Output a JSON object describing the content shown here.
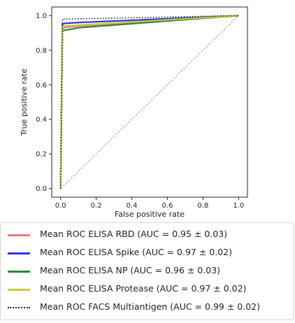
{
  "chart_data": {
    "type": "line",
    "xlabel": "False positive rate",
    "ylabel": "True positive rate",
    "xlim": [
      -0.05,
      1.05
    ],
    "ylim": [
      -0.05,
      1.05
    ],
    "xticks": [
      "0.0",
      "0.2",
      "0.4",
      "0.6",
      "0.8",
      "1.0"
    ],
    "yticks": [
      "0.0",
      "0.2",
      "0.4",
      "0.6",
      "0.8",
      "1.0"
    ],
    "legend_position": "below",
    "diagonal_reference": {
      "x": [
        0,
        1
      ],
      "y": [
        0,
        1
      ],
      "color": "#888888",
      "style": "dashed"
    },
    "series": [
      {
        "name": "Mean ROC ELISA RBD (AUC = 0.95 ± 0.03)",
        "color": "#f07878",
        "style": "solid",
        "x": [
          0,
          0.01,
          0.02,
          0.05,
          0.1,
          1.0
        ],
        "y": [
          0,
          0.92,
          0.93,
          0.935,
          0.94,
          1.0
        ]
      },
      {
        "name": "Mean ROC ELISA Spike (AUC = 0.97 ± 0.02)",
        "color": "#3333ee",
        "style": "solid",
        "x": [
          0,
          0.01,
          0.02,
          0.1,
          1.0
        ],
        "y": [
          0,
          0.95,
          0.955,
          0.96,
          1.0
        ]
      },
      {
        "name": "Mean ROC ELISA NP (AUC = 0.96 ± 0.03)",
        "color": "#2a8a2a",
        "style": "solid",
        "x": [
          0,
          0.01,
          0.02,
          0.05,
          0.1,
          1.0
        ],
        "y": [
          0,
          0.91,
          0.915,
          0.92,
          0.93,
          1.0
        ]
      },
      {
        "name": "Mean ROC ELISA Protease (AUC = 0.97 ± 0.02)",
        "color": "#cccc33",
        "style": "solid",
        "x": [
          0,
          0.01,
          0.02,
          0.1,
          1.0
        ],
        "y": [
          0,
          0.935,
          0.94,
          0.945,
          1.0
        ]
      },
      {
        "name": "Mean ROC FACS Multiantigen (AUC = 0.99 ± 0.02)",
        "color": "#222222",
        "style": "dotted",
        "x": [
          0,
          0.01,
          0.02,
          1.0
        ],
        "y": [
          0,
          0.98,
          0.98,
          1.0
        ]
      }
    ]
  }
}
